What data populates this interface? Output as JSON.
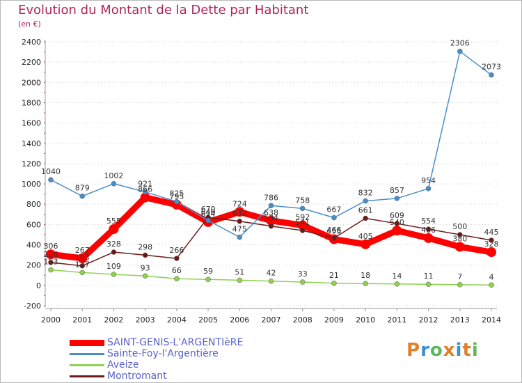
{
  "chart_data": {
    "type": "line",
    "title": "Evolution du Montant de la Dette par Habitant",
    "subtitle": "(en €)",
    "x": [
      "2000",
      "2001",
      "2002",
      "2003",
      "2004",
      "2005",
      "2006",
      "2007",
      "2008",
      "2009",
      "2010",
      "2011",
      "2012",
      "2013",
      "2014"
    ],
    "ylim": [
      -200,
      2400
    ],
    "yticks": [
      -200,
      0,
      200,
      400,
      600,
      800,
      1000,
      1200,
      1400,
      1600,
      1800,
      2000,
      2200,
      2400
    ],
    "grid": "horizontal-dotted",
    "legend": "bottom-left",
    "series": [
      {
        "name": "SAINT-GENIS-L'ARGENTIèRE",
        "color": "#ff0000",
        "values": [
          306,
          267,
          555,
          866,
          795,
          624,
          724,
          638,
          592,
          455,
          405,
          540,
          466,
          380,
          328
        ],
        "labels": [
          "306",
          "267",
          "555",
          "866",
          "795",
          "624",
          "724",
          "638",
          "592",
          "455",
          "405",
          "540",
          "466",
          "380",
          "328"
        ]
      },
      {
        "name": "Sainte-Foy-l'Argentière",
        "color": "#4a8ec8",
        "values": [
          1040,
          879,
          1002,
          921,
          825,
          640,
          475,
          786,
          758,
          667,
          832,
          857,
          954,
          2306,
          2073
        ],
        "labels": [
          "1040",
          "879",
          "1002",
          "921",
          "825",
          "640",
          "475",
          "786",
          "758",
          "667",
          "832",
          "857",
          "954",
          "2306",
          "2073"
        ]
      },
      {
        "name": "Aveize",
        "color": "#90d050",
        "values": [
          153,
          127,
          109,
          93,
          66,
          59,
          51,
          42,
          33,
          21,
          18,
          14,
          11,
          7,
          4
        ],
        "labels": [
          "153",
          "127",
          "109",
          "93",
          "66",
          "59",
          "51",
          "42",
          "33",
          "21",
          "18",
          "14",
          "11",
          "7",
          "4"
        ]
      },
      {
        "name": "Montromant",
        "color": "#6e1a1a",
        "values": [
          226,
          193,
          328,
          298,
          266,
          670,
          632,
          584,
          541,
          466,
          661,
          609,
          554,
          500,
          445
        ],
        "labels": [
          "226",
          "193",
          "328",
          "298",
          "266",
          "670",
          "632",
          "584",
          "541",
          "466",
          "661",
          "609",
          "554",
          "500",
          "445"
        ]
      }
    ]
  },
  "logo": {
    "letters": [
      "P",
      "r",
      "o",
      "x",
      "i",
      "t",
      "i"
    ],
    "colors": [
      "#e0802a",
      "#3d8fd0",
      "#5cb85c",
      "#e0802a",
      "#3d8fd0",
      "#e0802a",
      "#5cb85c"
    ]
  }
}
